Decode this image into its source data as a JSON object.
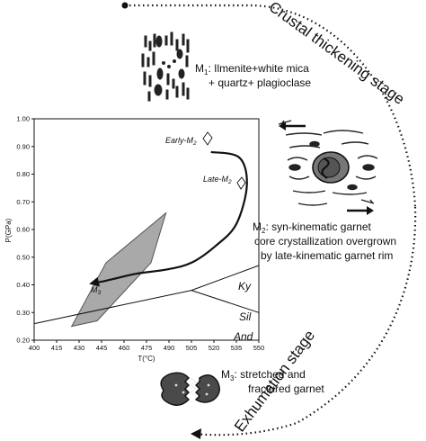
{
  "stages": {
    "crustal_thickening": "Crustal thickening stage",
    "exhumation": "Exhumation stage"
  },
  "metamorphism": {
    "m1": {
      "symbol": "M",
      "sub": "1",
      "text": ": Ilmenite+white mica",
      "text2": "+ quartz+ plagioclase"
    },
    "m2": {
      "symbol": "M",
      "sub": "2",
      "text": ": syn-kinematic garnet",
      "text2": "core crystallization overgrown",
      "text3": "by late-kinematic garnet rim"
    },
    "m3": {
      "symbol": "M",
      "sub": "3",
      "text": ": stretched and",
      "text2": "fractured garnet"
    }
  },
  "pt_path_labels": {
    "early": "Early-M",
    "early_sub": "2",
    "late": "Late-M",
    "late_sub": "2",
    "m3": "M",
    "m3_sub": "3"
  },
  "phase_fields": {
    "ky": "Ky",
    "sil": "Sil",
    "and": "And"
  },
  "colors": {
    "field_fill": "#a9a9a9",
    "field_stroke": "#555555",
    "ink": "#111111"
  },
  "chart_data": {
    "type": "diagram",
    "xlabel": "T(°C)",
    "ylabel": "P(GPa)",
    "xlim": [
      400,
      550
    ],
    "ylim": [
      0.2,
      1.0
    ],
    "x_ticks": [
      "400",
      "415",
      "430",
      "445",
      "460",
      "475",
      "490",
      "505",
      "520",
      "535",
      "550"
    ],
    "y_ticks": [
      "0.20",
      "0.30",
      "0.40",
      "0.50",
      "0.60",
      "0.70",
      "0.80",
      "0.90",
      "1.00"
    ],
    "aluminosilicate_triple_point": [
      505,
      0.38
    ],
    "ky_sil_boundary": [
      [
        505,
        0.38
      ],
      [
        550,
        0.47
      ]
    ],
    "ky_and_boundary": [
      [
        400,
        0.26
      ],
      [
        505,
        0.38
      ]
    ],
    "sil_and_boundary": [
      [
        505,
        0.38
      ],
      [
        550,
        0.3
      ]
    ],
    "m3_field": [
      [
        425,
        0.25
      ],
      [
        448,
        0.48
      ],
      [
        488,
        0.66
      ],
      [
        478,
        0.48
      ],
      [
        442,
        0.27
      ]
    ],
    "pt_path": [
      [
        518,
        0.88
      ],
      [
        537,
        0.86
      ],
      [
        542,
        0.76
      ],
      [
        535,
        0.62
      ],
      [
        521,
        0.54
      ],
      [
        505,
        0.48
      ],
      [
        488,
        0.455
      ],
      [
        468,
        0.44
      ],
      [
        448,
        0.415
      ],
      [
        438,
        0.405
      ]
    ]
  }
}
